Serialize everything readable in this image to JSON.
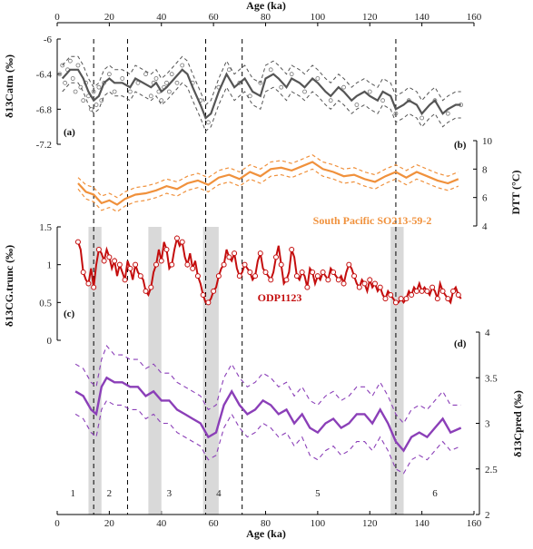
{
  "x_axis": {
    "label": "Age (ka)",
    "ticks": [
      0,
      20,
      40,
      60,
      80,
      100,
      120,
      140,
      160
    ],
    "range": [
      0,
      160
    ]
  },
  "panels": {
    "a": {
      "label": "(a)",
      "ylabel": "δ13Catm (‰)",
      "yticks": [
        "-6",
        "-6.4",
        "-6.8",
        "-7.2"
      ],
      "range": [
        -6.0,
        -7.2
      ],
      "color": "#555555"
    },
    "b": {
      "label": "(b)",
      "ylabel": "DTT (°C)",
      "yticks": [
        "10",
        "8",
        "6",
        "4"
      ],
      "range": [
        4,
        10
      ],
      "color": "#f0913c",
      "series_label": "South Pacific SO213-59-2"
    },
    "c": {
      "label": "(c)",
      "ylabel": "δ13CG.trunc (‰)",
      "yticks": [
        "1.5",
        "1",
        "0.5",
        "0"
      ],
      "range": [
        0,
        1.5
      ],
      "color": "#c40e0e",
      "series_label": "ODP1123"
    },
    "d": {
      "label": "(d)",
      "ylabel": "δ13Cpred (‰)",
      "yticks": [
        "4",
        "3.5",
        "3",
        "2.5",
        "2"
      ],
      "range": [
        2,
        4
      ],
      "color": "#8b3fb8"
    }
  },
  "stages": [
    "1",
    "2",
    "3",
    "4",
    "5",
    "6"
  ],
  "stage_boundaries_ka": [
    14,
    27,
    57,
    71,
    130
  ],
  "gray_bands_ka": [
    [
      12,
      17
    ],
    [
      35,
      40
    ],
    [
      56,
      62
    ],
    [
      128,
      133
    ]
  ],
  "chart_data": [
    {
      "type": "line",
      "panel": "a",
      "ylabel": "δ13Catm (‰)",
      "ylim": [
        -7.2,
        -6.0
      ],
      "x": [
        2,
        5,
        8,
        10,
        12,
        14,
        16,
        18,
        20,
        22,
        25,
        28,
        30,
        33,
        36,
        38,
        40,
        42,
        45,
        48,
        50,
        52,
        55,
        57,
        59,
        62,
        65,
        68,
        70,
        72,
        75,
        78,
        80,
        83,
        85,
        88,
        90,
        93,
        95,
        98,
        100,
        103,
        105,
        108,
        110,
        113,
        115,
        118,
        120,
        123,
        125,
        128,
        130,
        133,
        135,
        138,
        140,
        143,
        145,
        148,
        150,
        153,
        155
      ],
      "series": [
        {
          "name": "mean",
          "values": [
            -6.45,
            -6.35,
            -6.35,
            -6.45,
            -6.6,
            -6.7,
            -6.65,
            -6.5,
            -6.45,
            -6.5,
            -6.5,
            -6.55,
            -6.45,
            -6.5,
            -6.55,
            -6.5,
            -6.6,
            -6.55,
            -6.45,
            -6.35,
            -6.4,
            -6.55,
            -6.75,
            -6.9,
            -6.85,
            -6.6,
            -6.4,
            -6.55,
            -6.5,
            -6.45,
            -6.6,
            -6.65,
            -6.45,
            -6.4,
            -6.45,
            -6.55,
            -6.45,
            -6.5,
            -6.55,
            -6.45,
            -6.5,
            -6.6,
            -6.65,
            -6.55,
            -6.6,
            -6.7,
            -6.65,
            -6.6,
            -6.65,
            -6.7,
            -6.6,
            -6.65,
            -6.8,
            -6.75,
            -6.7,
            -6.75,
            -6.85,
            -6.75,
            -6.7,
            -6.85,
            -6.8,
            -6.75,
            -6.75
          ]
        },
        {
          "name": "upper",
          "values": [
            -6.3,
            -6.2,
            -6.2,
            -6.3,
            -6.45,
            -6.55,
            -6.5,
            -6.35,
            -6.3,
            -6.35,
            -6.35,
            -6.4,
            -6.3,
            -6.35,
            -6.4,
            -6.35,
            -6.45,
            -6.4,
            -6.3,
            -6.2,
            -6.25,
            -6.4,
            -6.6,
            -6.75,
            -6.7,
            -6.45,
            -6.25,
            -6.4,
            -6.35,
            -6.3,
            -6.45,
            -6.5,
            -6.3,
            -6.25,
            -6.3,
            -6.4,
            -6.3,
            -6.35,
            -6.4,
            -6.3,
            -6.35,
            -6.45,
            -6.5,
            -6.4,
            -6.45,
            -6.55,
            -6.5,
            -6.45,
            -6.5,
            -6.55,
            -6.45,
            -6.5,
            -6.65,
            -6.6,
            -6.55,
            -6.6,
            -6.7,
            -6.6,
            -6.55,
            -6.7,
            -6.65,
            -6.6,
            -6.6
          ]
        },
        {
          "name": "lower",
          "values": [
            -6.6,
            -6.5,
            -6.5,
            -6.6,
            -6.75,
            -6.85,
            -6.8,
            -6.65,
            -6.6,
            -6.65,
            -6.65,
            -6.7,
            -6.6,
            -6.65,
            -6.7,
            -6.65,
            -6.75,
            -6.7,
            -6.6,
            -6.5,
            -6.55,
            -6.7,
            -6.9,
            -7.05,
            -7.0,
            -6.75,
            -6.55,
            -6.7,
            -6.65,
            -6.6,
            -6.75,
            -6.8,
            -6.6,
            -6.55,
            -6.6,
            -6.7,
            -6.6,
            -6.65,
            -6.7,
            -6.6,
            -6.65,
            -6.75,
            -6.8,
            -6.7,
            -6.75,
            -6.85,
            -6.8,
            -6.75,
            -6.8,
            -6.85,
            -6.75,
            -6.8,
            -6.95,
            -6.9,
            -6.85,
            -6.9,
            -7.0,
            -6.9,
            -6.85,
            -7.0,
            -6.95,
            -6.9,
            -6.9
          ]
        }
      ],
      "points_x": [
        1,
        2,
        3,
        4,
        5,
        6,
        7,
        8,
        9,
        10,
        11,
        12,
        13,
        14,
        15,
        16,
        17,
        18,
        20,
        22,
        25,
        28,
        31,
        34,
        36,
        37,
        38,
        39,
        40,
        41,
        42,
        43,
        44,
        46,
        48,
        52,
        55,
        58,
        62,
        66,
        70,
        74,
        78,
        82,
        86,
        90,
        95,
        100,
        105,
        110,
        115,
        120,
        125,
        130,
        135,
        140,
        145,
        150,
        155
      ],
      "points_y": [
        -6.4,
        -6.3,
        -6.5,
        -6.35,
        -6.25,
        -6.45,
        -6.6,
        -6.3,
        -6.55,
        -6.7,
        -6.5,
        -6.65,
        -6.8,
        -6.6,
        -6.75,
        -6.55,
        -6.7,
        -6.5,
        -6.4,
        -6.6,
        -6.45,
        -6.6,
        -6.5,
        -6.4,
        -6.65,
        -6.5,
        -6.45,
        -6.6,
        -6.7,
        -6.55,
        -6.5,
        -6.6,
        -6.4,
        -6.5,
        -6.3,
        -6.5,
        -6.7,
        -6.95,
        -6.55,
        -6.35,
        -6.5,
        -6.65,
        -6.5,
        -6.35,
        -6.55,
        -6.4,
        -6.6,
        -6.45,
        -6.7,
        -6.55,
        -6.75,
        -6.6,
        -6.7,
        -6.85,
        -6.7,
        -6.9,
        -6.7,
        -6.85,
        -6.75
      ]
    },
    {
      "type": "line",
      "panel": "b",
      "ylabel": "DTT (°C)",
      "ylim": [
        4,
        10
      ],
      "x": [
        8,
        11,
        14,
        17,
        20,
        23,
        26,
        30,
        34,
        38,
        42,
        46,
        50,
        54,
        58,
        62,
        66,
        70,
        74,
        78,
        82,
        86,
        90,
        94,
        98,
        102,
        106,
        110,
        114,
        118,
        122,
        126,
        130,
        134,
        138,
        142,
        146,
        150,
        154
      ],
      "series": [
        {
          "name": "mean",
          "values": [
            7.0,
            6.4,
            6.2,
            5.6,
            5.8,
            5.5,
            5.9,
            6.2,
            6.3,
            6.5,
            6.8,
            6.6,
            7.0,
            7.2,
            6.9,
            7.4,
            7.6,
            7.3,
            7.8,
            7.5,
            8.0,
            8.1,
            7.9,
            8.2,
            8.5,
            8.0,
            7.8,
            7.5,
            7.6,
            7.3,
            7.1,
            7.5,
            7.8,
            7.4,
            7.8,
            7.5,
            7.2,
            7.0,
            7.3
          ]
        },
        {
          "name": "upper",
          "values": [
            7.4,
            6.9,
            6.7,
            6.1,
            6.3,
            6.0,
            6.4,
            6.7,
            6.8,
            7.0,
            7.3,
            7.1,
            7.5,
            7.7,
            7.4,
            7.9,
            8.1,
            7.8,
            8.3,
            8.0,
            8.5,
            8.6,
            8.4,
            8.7,
            9.0,
            8.5,
            8.3,
            8.0,
            8.1,
            7.8,
            7.6,
            8.0,
            8.3,
            7.9,
            8.3,
            8.0,
            7.7,
            7.5,
            7.8
          ]
        },
        {
          "name": "lower",
          "values": [
            6.6,
            5.9,
            5.7,
            5.1,
            5.3,
            5.0,
            5.4,
            5.7,
            5.8,
            6.0,
            6.3,
            6.1,
            6.5,
            6.7,
            6.4,
            6.9,
            7.1,
            6.8,
            7.3,
            7.0,
            7.5,
            7.6,
            7.4,
            7.7,
            8.0,
            7.5,
            7.3,
            7.0,
            7.1,
            6.8,
            6.6,
            7.0,
            7.3,
            6.9,
            7.3,
            7.0,
            6.7,
            6.5,
            6.8
          ]
        }
      ]
    },
    {
      "type": "line",
      "panel": "c",
      "ylabel": "δ13CG.trunc (‰)",
      "ylim": [
        0,
        1.5
      ],
      "x": [
        8,
        9,
        10,
        11,
        12,
        13,
        14,
        15,
        16,
        17,
        18,
        19,
        20,
        21,
        22,
        23,
        24,
        25,
        26,
        27,
        28,
        29,
        30,
        31,
        32,
        33,
        34,
        35,
        36,
        37,
        38,
        39,
        40,
        41,
        42,
        43,
        44,
        45,
        46,
        47,
        48,
        49,
        50,
        51,
        52,
        53,
        54,
        55,
        56,
        57,
        58,
        59,
        60,
        61,
        62,
        63,
        64,
        65,
        66,
        67,
        68,
        69,
        70,
        71,
        72,
        73,
        74,
        75,
        76,
        77,
        78,
        79,
        80,
        81,
        82,
        83,
        84,
        85,
        86,
        87,
        88,
        89,
        90,
        91,
        92,
        93,
        94,
        95,
        96,
        97,
        98,
        99,
        100,
        101,
        102,
        103,
        104,
        105,
        106,
        107,
        108,
        109,
        110,
        111,
        112,
        113,
        114,
        115,
        116,
        117,
        118,
        119,
        120,
        121,
        122,
        123,
        124,
        125,
        126,
        127,
        128,
        129,
        130,
        131,
        132,
        133,
        134,
        135,
        136,
        137,
        138,
        139,
        140,
        141,
        142,
        143,
        144,
        145,
        146,
        147,
        148,
        149,
        150,
        151,
        152,
        153,
        154,
        155
      ],
      "values": [
        1.3,
        1.2,
        0.9,
        0.8,
        0.75,
        0.95,
        0.7,
        1.0,
        1.2,
        1.15,
        1.05,
        1.2,
        1.1,
        0.95,
        1.05,
        0.85,
        1.0,
        0.9,
        0.8,
        1.05,
        0.95,
        0.8,
        1.0,
        0.9,
        0.85,
        0.8,
        0.65,
        0.6,
        0.7,
        0.9,
        1.0,
        1.2,
        1.05,
        1.3,
        1.2,
        0.95,
        1.0,
        1.2,
        1.35,
        1.25,
        1.3,
        1.1,
        1.0,
        1.15,
        0.95,
        1.05,
        0.85,
        0.75,
        0.6,
        0.5,
        0.5,
        0.55,
        0.65,
        0.7,
        0.85,
        0.95,
        1.0,
        1.2,
        1.1,
        1.05,
        1.15,
        0.95,
        0.85,
        0.9,
        1.0,
        0.95,
        0.9,
        0.8,
        0.85,
        1.05,
        1.15,
        0.95,
        0.9,
        0.85,
        0.8,
        0.9,
        1.1,
        1.25,
        1.0,
        0.75,
        0.8,
        0.9,
        1.2,
        1.1,
        0.85,
        0.8,
        0.9,
        0.85,
        0.7,
        0.95,
        0.9,
        0.75,
        0.85,
        0.8,
        0.9,
        0.85,
        0.8,
        0.95,
        0.9,
        0.85,
        0.8,
        0.85,
        0.75,
        0.9,
        1.0,
        0.95,
        0.85,
        0.75,
        0.7,
        0.8,
        0.75,
        0.65,
        0.8,
        0.7,
        0.75,
        0.65,
        0.7,
        0.6,
        0.55,
        0.65,
        0.6,
        0.55,
        0.5,
        0.5,
        0.55,
        0.5,
        0.55,
        0.65,
        0.6,
        0.7,
        0.65,
        0.75,
        0.65,
        0.7,
        0.65,
        0.6,
        0.7,
        0.65,
        0.55,
        0.75,
        0.65,
        0.6,
        0.55,
        0.5,
        0.65,
        0.7,
        0.6,
        0.55
      ]
    },
    {
      "type": "line",
      "panel": "d",
      "ylabel": "δ13Cpred (‰)",
      "ylim": [
        2,
        4
      ],
      "x": [
        7,
        10,
        13,
        15,
        17,
        19,
        22,
        25,
        28,
        31,
        34,
        37,
        40,
        43,
        46,
        49,
        52,
        55,
        58,
        61,
        64,
        67,
        70,
        73,
        76,
        79,
        82,
        85,
        88,
        91,
        94,
        97,
        100,
        103,
        106,
        109,
        112,
        115,
        118,
        121,
        124,
        127,
        130,
        133,
        136,
        139,
        142,
        145,
        148,
        151,
        155
      ],
      "series": [
        {
          "name": "mean",
          "values": [
            3.35,
            3.3,
            3.15,
            3.1,
            3.4,
            3.5,
            3.45,
            3.45,
            3.4,
            3.4,
            3.3,
            3.35,
            3.25,
            3.25,
            3.15,
            3.1,
            3.05,
            3.0,
            2.85,
            2.9,
            3.2,
            3.35,
            3.2,
            3.1,
            3.15,
            3.25,
            3.2,
            3.1,
            3.15,
            3.0,
            3.1,
            2.95,
            2.9,
            3.0,
            3.05,
            2.95,
            3.0,
            3.1,
            3.1,
            3.0,
            3.15,
            3.0,
            2.8,
            2.7,
            2.85,
            2.9,
            2.85,
            2.95,
            3.05,
            2.9,
            2.95
          ]
        },
        {
          "name": "upper",
          "values": [
            3.65,
            3.6,
            3.45,
            3.4,
            3.7,
            3.85,
            3.75,
            3.75,
            3.7,
            3.7,
            3.6,
            3.65,
            3.55,
            3.55,
            3.45,
            3.4,
            3.35,
            3.3,
            3.15,
            3.2,
            3.5,
            3.65,
            3.5,
            3.4,
            3.45,
            3.55,
            3.5,
            3.4,
            3.45,
            3.3,
            3.4,
            3.25,
            3.2,
            3.3,
            3.35,
            3.25,
            3.3,
            3.4,
            3.4,
            3.3,
            3.45,
            3.3,
            3.1,
            3.0,
            3.15,
            3.2,
            3.15,
            3.25,
            3.35,
            3.2,
            3.2
          ]
        },
        {
          "name": "lower",
          "values": [
            3.1,
            3.05,
            2.9,
            2.85,
            3.15,
            3.25,
            3.2,
            3.2,
            3.15,
            3.15,
            3.05,
            3.1,
            3.0,
            3.0,
            2.9,
            2.85,
            2.8,
            2.75,
            2.6,
            2.65,
            2.95,
            3.1,
            2.95,
            2.85,
            2.9,
            3.0,
            2.95,
            2.85,
            2.9,
            2.75,
            2.85,
            2.65,
            2.6,
            2.7,
            2.75,
            2.65,
            2.7,
            2.8,
            2.8,
            2.7,
            2.85,
            2.7,
            2.5,
            2.45,
            2.6,
            2.65,
            2.6,
            2.7,
            2.8,
            2.7,
            2.75
          ]
        }
      ]
    }
  ]
}
